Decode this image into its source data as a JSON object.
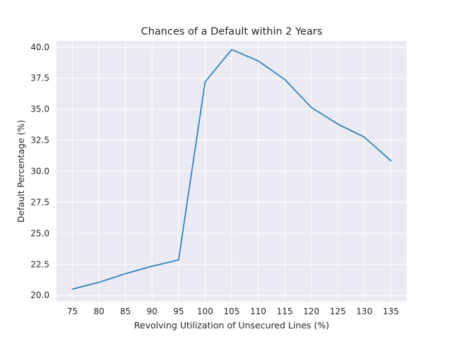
{
  "chart_data": {
    "type": "line",
    "title": "Chances of a Default within 2 Years",
    "xlabel": "Revolving Utilization of Unsecured Lines (%)",
    "ylabel": "Default Percentage (%)",
    "x": [
      75,
      80,
      85,
      90,
      95,
      100,
      105,
      110,
      115,
      120,
      125,
      130,
      135
    ],
    "series": [
      {
        "values": [
          20.5,
          21.05,
          21.75,
          22.35,
          22.85,
          37.2,
          39.8,
          38.9,
          37.4,
          35.15,
          33.8,
          32.75,
          30.85
        ]
      }
    ],
    "x_ticks": [
      "75",
      "80",
      "85",
      "90",
      "95",
      "100",
      "105",
      "110",
      "115",
      "120",
      "125",
      "130",
      "135"
    ],
    "y_ticks": [
      "20.0",
      "22.5",
      "25.0",
      "27.5",
      "30.0",
      "32.5",
      "35.0",
      "37.5",
      "40.0"
    ],
    "xlim": [
      72,
      138
    ],
    "ylim": [
      19.5,
      40.5
    ],
    "grid": true,
    "colors": {
      "line": "#1f77b4",
      "background": "#eaeaf2",
      "grid": "#ffffff"
    }
  }
}
